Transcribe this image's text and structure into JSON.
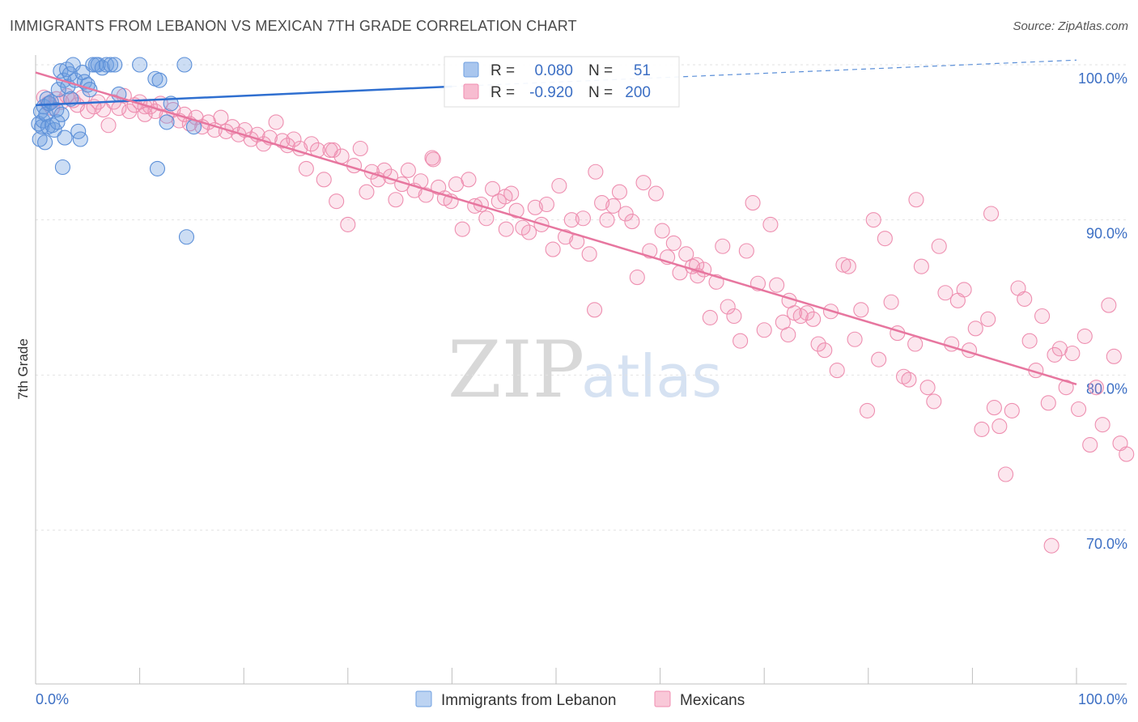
{
  "title": "IMMIGRANTS FROM LEBANON VS MEXICAN 7TH GRADE CORRELATION CHART",
  "source": "Source: ZipAtlas.com",
  "watermark": {
    "zip": "ZIP",
    "atlas": "atlas"
  },
  "legend": {
    "items": [
      {
        "label": "Immigrants from Lebanon",
        "color": "#6e9fe0"
      },
      {
        "label": "Mexicans",
        "color": "#f08db0"
      }
    ]
  },
  "stats": {
    "rows": [
      {
        "r_label": "R =",
        "r_value": "0.080",
        "n_label": "N =",
        "n_value": "51"
      },
      {
        "r_label": "R =",
        "r_value": "-0.920",
        "n_label": "N =",
        "n_value": "200"
      }
    ]
  },
  "chart_data": {
    "type": "scatter",
    "title": "IMMIGRANTS FROM LEBANON VS MEXICAN 7TH GRADE CORRELATION CHART",
    "xlabel": "",
    "ylabel": "7th Grade",
    "xlim": [
      0,
      100
    ],
    "ylim": [
      60,
      102
    ],
    "x_tick_labels": [
      "0.0%",
      "100.0%"
    ],
    "y_ticks": [
      70,
      80,
      90,
      100
    ],
    "y_tick_labels": [
      "70.0%",
      "80.0%",
      "90.0%",
      "100.0%"
    ],
    "grid": true,
    "legend_position": "bottom",
    "series": [
      {
        "name": "Immigrants from Lebanon",
        "color": "#6e9fe0",
        "trend": {
          "x": [
            0,
            40,
            100
          ],
          "y": [
            97.4,
            98.6,
            100.3
          ],
          "dashed_from": 40
        },
        "points": [
          [
            0.3,
            96.2
          ],
          [
            0.4,
            95.2
          ],
          [
            0.5,
            97.0
          ],
          [
            0.6,
            96.0
          ],
          [
            0.7,
            96.4
          ],
          [
            0.8,
            97.3
          ],
          [
            0.9,
            95.0
          ],
          [
            1.0,
            96.8
          ],
          [
            1.1,
            97.8
          ],
          [
            1.2,
            96.0
          ],
          [
            1.3,
            97.5
          ],
          [
            1.5,
            97.6
          ],
          [
            1.6,
            96.1
          ],
          [
            1.8,
            95.8
          ],
          [
            2.0,
            97.1
          ],
          [
            2.1,
            96.3
          ],
          [
            2.2,
            98.4
          ],
          [
            2.4,
            99.6
          ],
          [
            2.5,
            96.8
          ],
          [
            2.6,
            93.4
          ],
          [
            2.7,
            99.0
          ],
          [
            2.8,
            95.3
          ],
          [
            3.0,
            99.7
          ],
          [
            3.1,
            98.6
          ],
          [
            3.3,
            99.4
          ],
          [
            3.4,
            97.8
          ],
          [
            3.6,
            100.0
          ],
          [
            3.8,
            99.0
          ],
          [
            4.1,
            95.7
          ],
          [
            4.3,
            95.2
          ],
          [
            4.5,
            99.5
          ],
          [
            4.7,
            98.9
          ],
          [
            5.0,
            98.7
          ],
          [
            5.2,
            98.4
          ],
          [
            5.5,
            100.0
          ],
          [
            5.8,
            100.0
          ],
          [
            6.0,
            100.0
          ],
          [
            6.4,
            99.8
          ],
          [
            6.8,
            100.0
          ],
          [
            7.2,
            100.0
          ],
          [
            7.6,
            100.0
          ],
          [
            8.0,
            98.1
          ],
          [
            10.0,
            100.0
          ],
          [
            11.5,
            99.1
          ],
          [
            11.7,
            93.3
          ],
          [
            11.9,
            99.0
          ],
          [
            12.6,
            96.3
          ],
          [
            13.0,
            97.5
          ],
          [
            14.3,
            100.0
          ],
          [
            14.5,
            88.9
          ],
          [
            15.2,
            96.0
          ]
        ]
      },
      {
        "name": "Mexicans",
        "color": "#f08db0",
        "trend": {
          "x": [
            0,
            100
          ],
          "y": [
            99.5,
            79.4
          ]
        },
        "points": [
          [
            0.8,
            97.9
          ],
          [
            1.2,
            97.5
          ],
          [
            1.6,
            97.2
          ],
          [
            2.0,
            97.8
          ],
          [
            2.5,
            97.6
          ],
          [
            3.0,
            98.0
          ],
          [
            3.6,
            97.7
          ],
          [
            4.0,
            97.4
          ],
          [
            4.5,
            97.9
          ],
          [
            5.0,
            97.0
          ],
          [
            5.6,
            97.3
          ],
          [
            6.0,
            97.6
          ],
          [
            6.5,
            97.1
          ],
          [
            7.0,
            96.1
          ],
          [
            7.5,
            97.6
          ],
          [
            8.0,
            97.2
          ],
          [
            8.5,
            98.0
          ],
          [
            9.0,
            97.0
          ],
          [
            9.5,
            97.4
          ],
          [
            10.0,
            97.6
          ],
          [
            10.5,
            96.8
          ],
          [
            11.0,
            97.3
          ],
          [
            11.5,
            97.0
          ],
          [
            12.0,
            97.5
          ],
          [
            12.6,
            96.7
          ],
          [
            13.2,
            97.1
          ],
          [
            13.8,
            96.4
          ],
          [
            14.3,
            96.8
          ],
          [
            14.8,
            96.2
          ],
          [
            15.4,
            96.6
          ],
          [
            16.0,
            96.0
          ],
          [
            16.6,
            96.3
          ],
          [
            17.2,
            95.8
          ],
          [
            17.8,
            96.6
          ],
          [
            18.3,
            95.7
          ],
          [
            18.9,
            96.0
          ],
          [
            19.5,
            95.5
          ],
          [
            20.1,
            95.8
          ],
          [
            20.7,
            95.2
          ],
          [
            21.3,
            95.5
          ],
          [
            21.9,
            94.9
          ],
          [
            22.5,
            95.3
          ],
          [
            23.1,
            96.3
          ],
          [
            23.7,
            95.1
          ],
          [
            24.2,
            94.8
          ],
          [
            24.8,
            95.2
          ],
          [
            25.4,
            94.6
          ],
          [
            26.0,
            93.3
          ],
          [
            26.5,
            94.9
          ],
          [
            27.1,
            94.5
          ],
          [
            27.7,
            92.6
          ],
          [
            28.3,
            94.5
          ],
          [
            28.9,
            91.2
          ],
          [
            29.4,
            94.1
          ],
          [
            30.0,
            89.7
          ],
          [
            30.6,
            93.5
          ],
          [
            31.2,
            94.6
          ],
          [
            31.8,
            91.8
          ],
          [
            32.3,
            93.1
          ],
          [
            32.9,
            92.6
          ],
          [
            33.5,
            93.2
          ],
          [
            34.1,
            92.8
          ],
          [
            34.6,
            91.3
          ],
          [
            35.2,
            92.3
          ],
          [
            35.8,
            93.2
          ],
          [
            36.4,
            91.9
          ],
          [
            37.0,
            92.5
          ],
          [
            37.5,
            91.6
          ],
          [
            38.1,
            94.0
          ],
          [
            38.7,
            92.1
          ],
          [
            39.3,
            91.4
          ],
          [
            39.9,
            91.2
          ],
          [
            40.4,
            92.3
          ],
          [
            41.0,
            89.4
          ],
          [
            41.6,
            92.6
          ],
          [
            42.2,
            90.9
          ],
          [
            42.8,
            91.0
          ],
          [
            43.3,
            90.1
          ],
          [
            43.9,
            92.0
          ],
          [
            44.5,
            91.2
          ],
          [
            45.1,
            91.5
          ],
          [
            45.7,
            91.7
          ],
          [
            46.2,
            90.6
          ],
          [
            46.8,
            89.5
          ],
          [
            47.4,
            89.2
          ],
          [
            48.0,
            90.8
          ],
          [
            48.6,
            89.7
          ],
          [
            49.1,
            91.0
          ],
          [
            49.7,
            88.1
          ],
          [
            50.3,
            92.2
          ],
          [
            50.9,
            88.9
          ],
          [
            51.5,
            90.0
          ],
          [
            52.0,
            88.6
          ],
          [
            52.6,
            90.1
          ],
          [
            53.2,
            87.8
          ],
          [
            53.8,
            93.1
          ],
          [
            54.4,
            91.1
          ],
          [
            54.9,
            90.0
          ],
          [
            55.5,
            90.9
          ],
          [
            56.1,
            91.8
          ],
          [
            56.7,
            90.4
          ],
          [
            57.3,
            89.9
          ],
          [
            57.8,
            86.3
          ],
          [
            58.4,
            92.4
          ],
          [
            59.0,
            88.0
          ],
          [
            59.6,
            91.7
          ],
          [
            60.2,
            89.3
          ],
          [
            60.7,
            87.6
          ],
          [
            61.3,
            88.5
          ],
          [
            61.9,
            86.6
          ],
          [
            62.5,
            87.8
          ],
          [
            63.1,
            87.0
          ],
          [
            63.6,
            86.4
          ],
          [
            64.2,
            86.8
          ],
          [
            64.8,
            83.7
          ],
          [
            65.4,
            86.0
          ],
          [
            66.0,
            88.3
          ],
          [
            66.5,
            84.4
          ],
          [
            67.1,
            83.8
          ],
          [
            67.7,
            82.2
          ],
          [
            68.3,
            88.0
          ],
          [
            68.9,
            91.1
          ],
          [
            69.4,
            85.9
          ],
          [
            70.0,
            82.9
          ],
          [
            70.6,
            89.7
          ],
          [
            71.2,
            85.8
          ],
          [
            71.8,
            83.4
          ],
          [
            72.3,
            82.6
          ],
          [
            72.9,
            84.0
          ],
          [
            73.5,
            83.8
          ],
          [
            74.1,
            84.0
          ],
          [
            74.7,
            83.6
          ],
          [
            75.2,
            82.0
          ],
          [
            75.8,
            81.6
          ],
          [
            76.4,
            84.1
          ],
          [
            77.0,
            80.3
          ],
          [
            77.6,
            87.1
          ],
          [
            78.1,
            87.0
          ],
          [
            78.7,
            82.3
          ],
          [
            79.3,
            84.2
          ],
          [
            79.9,
            77.7
          ],
          [
            80.5,
            90.0
          ],
          [
            81.0,
            81.0
          ],
          [
            81.6,
            88.8
          ],
          [
            82.2,
            84.7
          ],
          [
            82.8,
            82.7
          ],
          [
            83.4,
            79.9
          ],
          [
            83.9,
            79.7
          ],
          [
            84.5,
            82.0
          ],
          [
            85.1,
            87.0
          ],
          [
            85.7,
            79.2
          ],
          [
            86.3,
            78.3
          ],
          [
            86.8,
            88.3
          ],
          [
            87.4,
            85.3
          ],
          [
            88.0,
            82.0
          ],
          [
            88.6,
            84.8
          ],
          [
            89.2,
            85.5
          ],
          [
            89.7,
            81.6
          ],
          [
            90.3,
            83.0
          ],
          [
            90.9,
            76.5
          ],
          [
            91.5,
            83.6
          ],
          [
            92.1,
            77.9
          ],
          [
            92.6,
            76.7
          ],
          [
            93.2,
            73.6
          ],
          [
            93.8,
            77.7
          ],
          [
            94.4,
            85.6
          ],
          [
            95.0,
            84.9
          ],
          [
            95.5,
            82.2
          ],
          [
            96.1,
            80.3
          ],
          [
            96.7,
            83.8
          ],
          [
            97.3,
            78.2
          ],
          [
            97.9,
            81.3
          ],
          [
            98.4,
            81.7
          ],
          [
            99.0,
            79.2
          ],
          [
            99.6,
            81.4
          ],
          [
            100.2,
            77.8
          ],
          [
            100.8,
            82.5
          ],
          [
            101.3,
            75.5
          ],
          [
            101.9,
            79.2
          ],
          [
            102.5,
            76.8
          ],
          [
            103.1,
            84.5
          ],
          [
            103.6,
            81.2
          ],
          [
            104.2,
            75.6
          ],
          [
            104.8,
            74.9
          ],
          [
            10.5,
            97.3
          ],
          [
            28.6,
            94.5
          ],
          [
            38.2,
            93.9
          ],
          [
            45.2,
            89.4
          ],
          [
            53.7,
            84.2
          ],
          [
            63.5,
            87.1
          ],
          [
            72.4,
            84.8
          ],
          [
            84.6,
            91.3
          ],
          [
            91.8,
            90.4
          ],
          [
            97.6,
            69.0
          ]
        ]
      }
    ]
  }
}
